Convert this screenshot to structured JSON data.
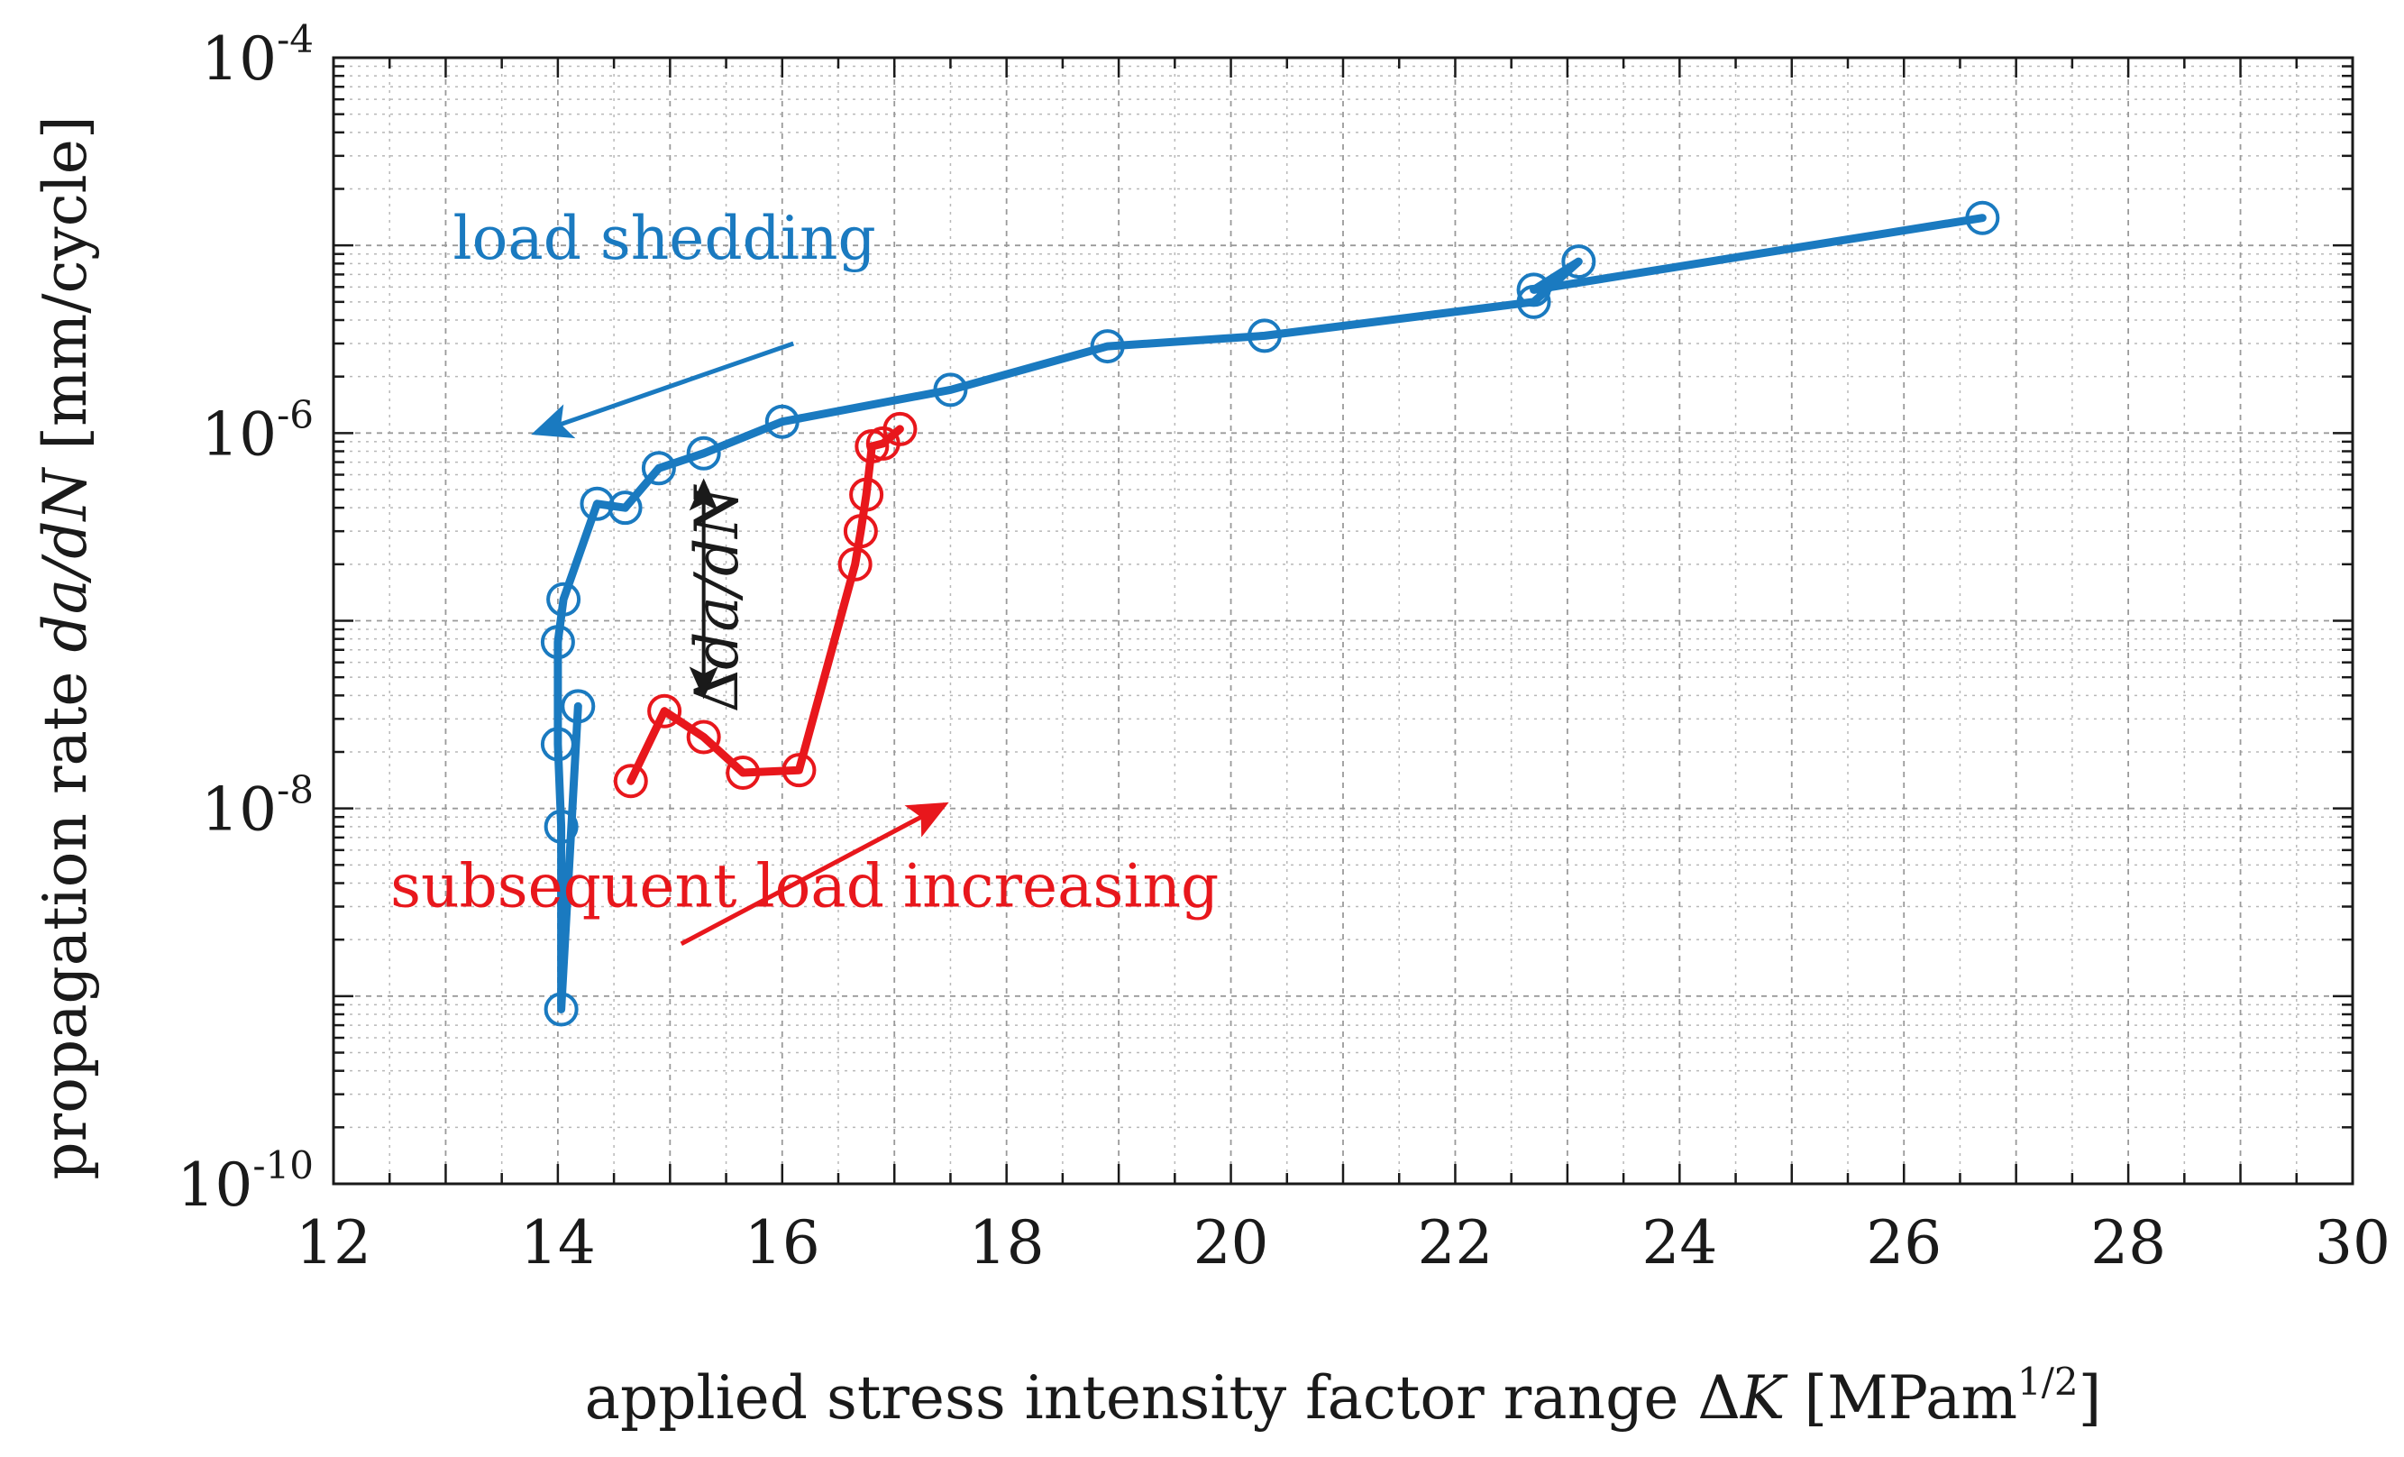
{
  "chart_data": {
    "type": "line",
    "x_scale": "linear",
    "y_scale": "log",
    "xlim": [
      12,
      30
    ],
    "ylim": [
      1e-10,
      0.0001
    ],
    "grid": true,
    "minor_grid": true,
    "x_ticks": [
      {
        "value": 12,
        "label": "12"
      },
      {
        "value": 14,
        "label": "14"
      },
      {
        "value": 16,
        "label": "16"
      },
      {
        "value": 18,
        "label": "18"
      },
      {
        "value": 20,
        "label": "20"
      },
      {
        "value": 22,
        "label": "22"
      },
      {
        "value": 24,
        "label": "24"
      },
      {
        "value": 26,
        "label": "26"
      },
      {
        "value": 28,
        "label": "28"
      },
      {
        "value": 30,
        "label": "30"
      }
    ],
    "y_ticks": [
      {
        "value": 1e-10,
        "base": "10",
        "exp": "-10"
      },
      {
        "value": 1e-08,
        "base": "10",
        "exp": "-8"
      },
      {
        "value": 1e-06,
        "base": "10",
        "exp": "-6"
      },
      {
        "value": 0.0001,
        "base": "10",
        "exp": "-4"
      }
    ],
    "xlabel": {
      "pre": "applied stress intensity factor range Δ",
      "italic": "K",
      "post": " [MPam",
      "sup": "1/2",
      "end": "]"
    },
    "ylabel": {
      "pre": "propagation rate ",
      "italic": "da/dN",
      "post": " [mm/cycle]"
    },
    "series": [
      {
        "color": "#1a7ac0",
        "x": [
          26.7,
          22.7,
          23.1,
          22.7,
          20.3,
          18.9,
          17.5,
          16.0,
          15.3,
          14.9,
          14.6,
          14.35,
          14.05,
          14.0,
          14.0,
          14.03,
          14.03,
          14.18
        ],
        "y": [
          1.4e-05,
          5.8e-06,
          8.2e-06,
          5e-06,
          3.3e-06,
          2.9e-06,
          1.7e-06,
          1.15e-06,
          7.8e-07,
          6.5e-07,
          4e-07,
          4.2e-07,
          1.3e-07,
          7.7e-08,
          2.2e-08,
          8e-09,
          8.5e-10,
          3.5e-08
        ]
      },
      {
        "color": "#e8171c",
        "x": [
          14.65,
          14.95,
          15.3,
          15.65,
          16.15,
          16.65,
          16.7,
          16.75,
          16.8,
          16.9,
          17.05
        ],
        "y": [
          1.4e-08,
          3.3e-08,
          2.4e-08,
          1.55e-08,
          1.6e-08,
          2e-07,
          3e-07,
          4.7e-07,
          8.5e-07,
          8.8e-07,
          1.05e-06
        ]
      }
    ],
    "annotations": [
      {
        "id": "load-shedding",
        "text": "load shedding",
        "color": "#1a7ac0",
        "x": 14.95,
        "y": 8.5e-06
      },
      {
        "id": "subsequent-load-increasing",
        "text": "subsequent load increasing",
        "color": "#e8171c",
        "x": 16.2,
        "y": 3e-09
      },
      {
        "id": "delta-dadn",
        "pre": "Δ",
        "italic": "da/dN",
        "color": "#1a1a1a",
        "x": 15.6,
        "y": 1.3e-07
      }
    ],
    "arrows": [
      {
        "id": "load-shedding-arrow",
        "color": "#1a7ac0",
        "x1": 16.1,
        "y1": 3e-06,
        "x2": 13.8,
        "y2": 1e-06,
        "heads": "end"
      },
      {
        "id": "load-increasing-arrow",
        "color": "#e8171c",
        "x1": 15.1,
        "y1": 1.9e-09,
        "x2": 17.45,
        "y2": 1.05e-08,
        "heads": "end"
      },
      {
        "id": "delta-arrow",
        "color": "#1a1a1a",
        "x1": 15.3,
        "y1": 5.5e-07,
        "x2": 15.3,
        "y2": 4e-08,
        "heads": "both"
      }
    ]
  }
}
